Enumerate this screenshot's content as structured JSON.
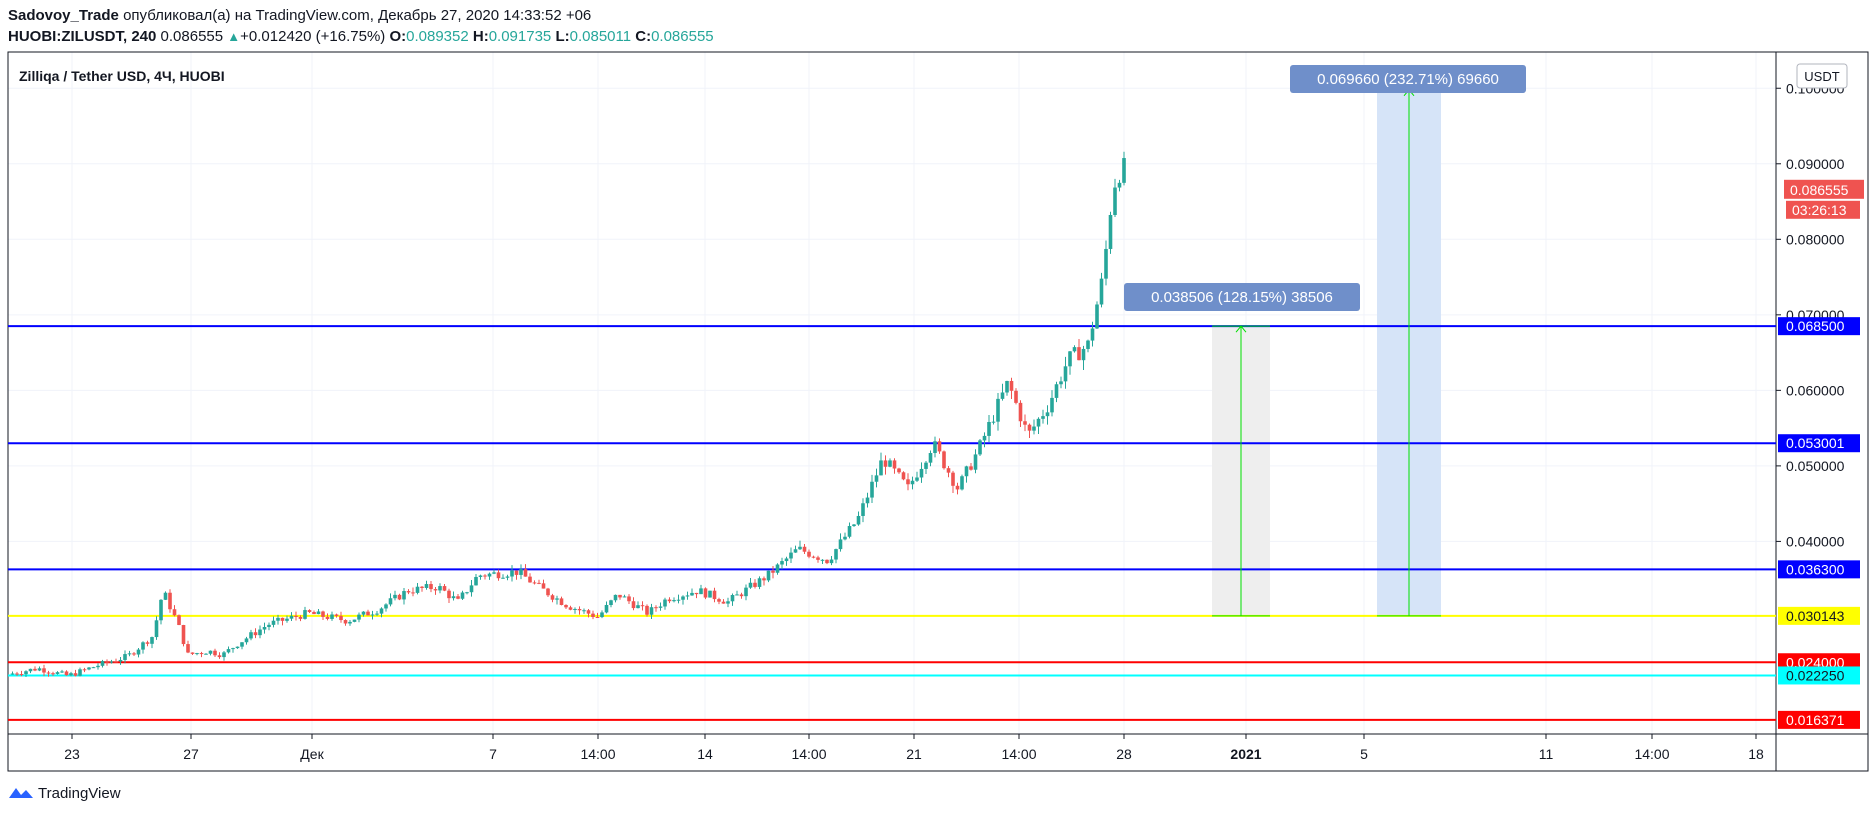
{
  "header": {
    "author": "Sadovoy_Trade",
    "published_text": "опубликовал(а) на TradingView.com, Декабрь 27, 2020 14:33:52 +06",
    "symbol": "HUOBI:ZILUSDT, 240",
    "last": "0.086555",
    "change": "+0.012420 (+16.75%)",
    "o_label": "O:",
    "o_value": "0.089352",
    "h_label": "H:",
    "h_value": "0.091735",
    "l_label": "L:",
    "l_value": "0.085011",
    "c_label": "C:",
    "c_value": "0.086555"
  },
  "footer": {
    "brand": "TradingView"
  },
  "chart_data": {
    "type": "candlestick",
    "title": "Zilliqa / Tether USD, 4Ч, HUOBI",
    "currency_button": "USDT",
    "y_scale": {
      "min": 0.0145,
      "max": 0.1048
    },
    "y_ticks": [
      "0.100000",
      "0.090000",
      "0.080000",
      "0.070000",
      "0.060000",
      "0.050000",
      "0.040000"
    ],
    "x_ticks": [
      {
        "label": "23",
        "bold": false
      },
      {
        "label": "27",
        "bold": false
      },
      {
        "label": "Дек",
        "bold": false
      },
      {
        "label": "7",
        "bold": false
      },
      {
        "label": "14:00",
        "bold": false
      },
      {
        "label": "14",
        "bold": false
      },
      {
        "label": "14:00",
        "bold": false
      },
      {
        "label": "21",
        "bold": false
      },
      {
        "label": "14:00",
        "bold": false
      },
      {
        "label": "28",
        "bold": false
      },
      {
        "label": "2021",
        "bold": true
      },
      {
        "label": "5",
        "bold": false
      },
      {
        "label": "11",
        "bold": false
      },
      {
        "label": "14:00",
        "bold": false
      },
      {
        "label": "18",
        "bold": false
      }
    ],
    "price_path": [
      [
        0,
        0.0224
      ],
      [
        0.03,
        0.0232
      ],
      [
        0.06,
        0.0222
      ],
      [
        0.09,
        0.0236
      ],
      [
        0.12,
        0.0248
      ],
      [
        0.145,
        0.0275
      ],
      [
        0.155,
        0.0335
      ],
      [
        0.17,
        0.029
      ],
      [
        0.18,
        0.025
      ],
      [
        0.2,
        0.0255
      ],
      [
        0.215,
        0.025
      ],
      [
        0.23,
        0.0265
      ],
      [
        0.26,
        0.029
      ],
      [
        0.3,
        0.0305
      ],
      [
        0.34,
        0.0295
      ],
      [
        0.37,
        0.031
      ],
      [
        0.4,
        0.0335
      ],
      [
        0.43,
        0.034
      ],
      [
        0.45,
        0.032
      ],
      [
        0.47,
        0.0355
      ],
      [
        0.51,
        0.036
      ],
      [
        0.53,
        0.034
      ],
      [
        0.56,
        0.0315
      ],
      [
        0.59,
        0.03
      ],
      [
        0.61,
        0.033
      ],
      [
        0.64,
        0.0305
      ],
      [
        0.66,
        0.0325
      ],
      [
        0.69,
        0.0335
      ],
      [
        0.72,
        0.032
      ],
      [
        0.76,
        0.0355
      ],
      [
        0.79,
        0.039
      ],
      [
        0.82,
        0.0375
      ],
      [
        0.85,
        0.043
      ],
      [
        0.875,
        0.051
      ],
      [
        0.9,
        0.047
      ],
      [
        0.925,
        0.053
      ],
      [
        0.95,
        0.047
      ],
      [
        0.97,
        0.052
      ],
      [
        1.0,
        0.061
      ],
      [
        1.02,
        0.054
      ],
      [
        1.04,
        0.058
      ],
      [
        1.06,
        0.064
      ],
      [
        1.08,
        0.066
      ],
      [
        1.095,
        0.075
      ],
      [
        1.105,
        0.087
      ],
      [
        1.115,
        0.09
      ],
      [
        1.12,
        0.0866
      ]
    ],
    "horizontal_levels": [
      {
        "value": 0.0685,
        "label": "0.068500",
        "color": "#0000ff",
        "text_color": "#ffffff"
      },
      {
        "value": 0.053001,
        "label": "0.053001",
        "color": "#0000ff",
        "text_color": "#ffffff"
      },
      {
        "value": 0.0363,
        "label": "0.036300",
        "color": "#0000ff",
        "text_color": "#ffffff"
      },
      {
        "value": 0.030143,
        "label": "0.030143",
        "color": "#ffff00",
        "text_color": "#131722"
      },
      {
        "value": 0.024,
        "label": "0.024000",
        "color": "#ff0000",
        "text_color": "#ffffff"
      },
      {
        "value": 0.02225,
        "label": "0.022250",
        "color": "#00ffff",
        "text_color": "#131722"
      },
      {
        "value": 0.016371,
        "label": "0.016371",
        "color": "#ff0000",
        "text_color": "#ffffff"
      }
    ],
    "last_price": {
      "label": "0.086555",
      "countdown": "03:26:13",
      "value": 0.086555,
      "color": "#ef5350"
    },
    "measurements": [
      {
        "label": "0.038506 (128.15%) 38506",
        "from": 0.030143,
        "to": 0.0685,
        "fill": "#eeeeee",
        "box_color": "#6f8fca"
      },
      {
        "label": "0.069660 (232.71%) 69660",
        "from": 0.030143,
        "to": 0.0998,
        "fill": "#d6e4f8",
        "box_color": "#6f8fca"
      }
    ],
    "colors": {
      "up": "#26a69a",
      "down": "#ef5350",
      "grid": "#f0f3fa",
      "arrow": "#00e000"
    }
  }
}
